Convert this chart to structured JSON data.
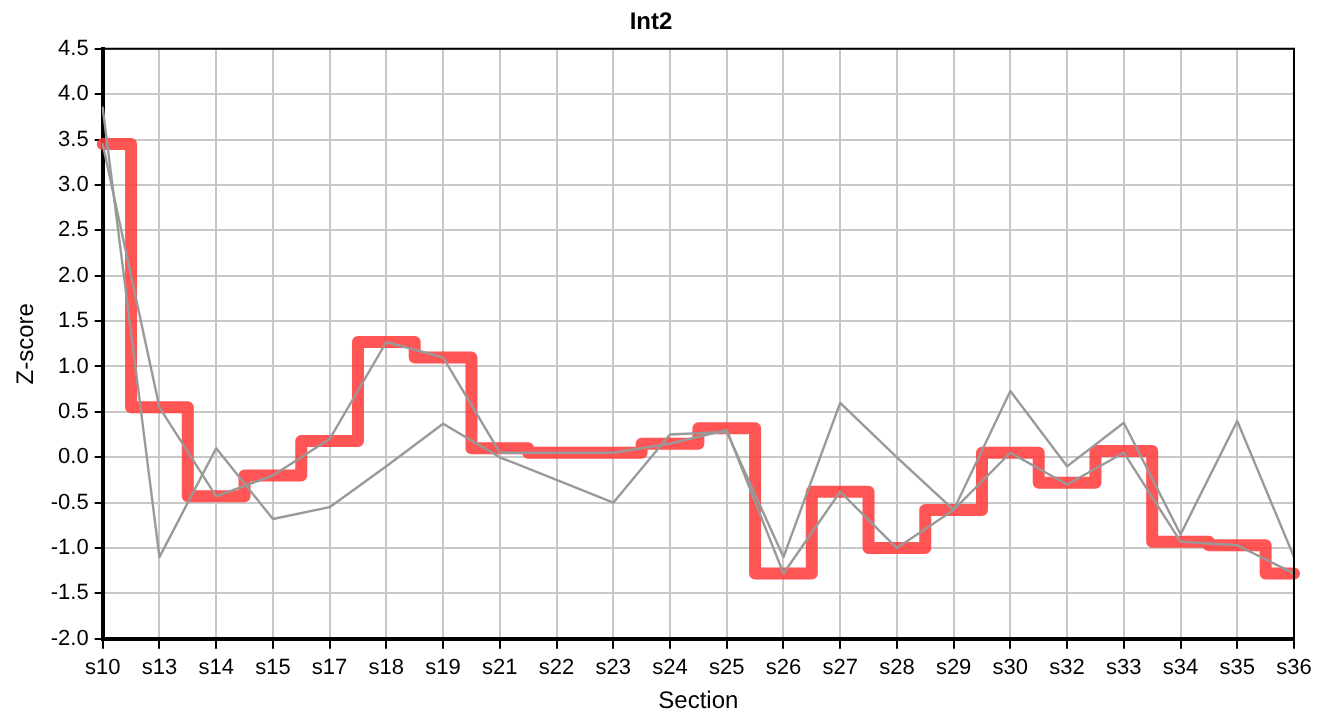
{
  "chart_data": {
    "type": "line",
    "title": "Int2",
    "xlabel": "Section",
    "ylabel": "Z-score",
    "categories": [
      "s10",
      "s13",
      "s14",
      "s15",
      "s17",
      "s18",
      "s19",
      "s21",
      "s22",
      "s23",
      "s24",
      "s25",
      "s26",
      "s27",
      "s28",
      "s29",
      "s30",
      "s32",
      "s33",
      "s34",
      "s35",
      "s36"
    ],
    "series": [
      {
        "color": "#999999",
        "values": [
          3.85,
          -1.1,
          0.1,
          -0.68,
          -0.55,
          -0.1,
          0.37,
          0.0,
          -0.25,
          -0.5,
          0.25,
          0.28,
          -1.1,
          0.6,
          0.0,
          -0.58,
          0.73,
          -0.1,
          0.38,
          -0.85,
          0.4,
          -1.1
        ]
      },
      {
        "color": "#999999",
        "values": [
          3.45,
          0.55,
          -0.43,
          -0.2,
          0.2,
          1.27,
          1.1,
          0.05,
          0.05,
          0.05,
          0.15,
          0.3,
          -1.28,
          -0.38,
          -1.0,
          -0.58,
          0.05,
          -0.3,
          0.05,
          -0.93,
          -0.97,
          -1.28
        ]
      },
      {
        "type": "step",
        "color": "#ff3b3b",
        "values": [
          3.45,
          0.55,
          -0.43,
          -0.2,
          0.18,
          1.27,
          1.1,
          0.1,
          0.05,
          0.05,
          0.15,
          0.32,
          -1.28,
          -0.38,
          -1.0,
          -0.58,
          0.05,
          -0.28,
          0.07,
          -0.93,
          -0.97,
          -1.28
        ]
      }
    ],
    "ylim": [
      -2,
      4.5
    ],
    "yticks": [
      {
        "value": -2,
        "label": "-2.0"
      },
      {
        "value": -1.5,
        "label": "-1.5"
      },
      {
        "value": -1,
        "label": "-1.0"
      },
      {
        "value": -0.5,
        "label": "-0.5"
      },
      {
        "value": 0,
        "label": "0.0"
      },
      {
        "value": 0.5,
        "label": "0.5"
      },
      {
        "value": 1,
        "label": "1.0"
      },
      {
        "value": 1.5,
        "label": "1.5"
      },
      {
        "value": 2,
        "label": "2.0"
      },
      {
        "value": 2.5,
        "label": "2.5"
      },
      {
        "value": 3,
        "label": "3.0"
      },
      {
        "value": 3.5,
        "label": "3.5"
      },
      {
        "value": 4,
        "label": "4.0"
      },
      {
        "value": 4.5,
        "label": "4.5"
      }
    ],
    "grid": true,
    "legend": false,
    "marker": "none"
  }
}
